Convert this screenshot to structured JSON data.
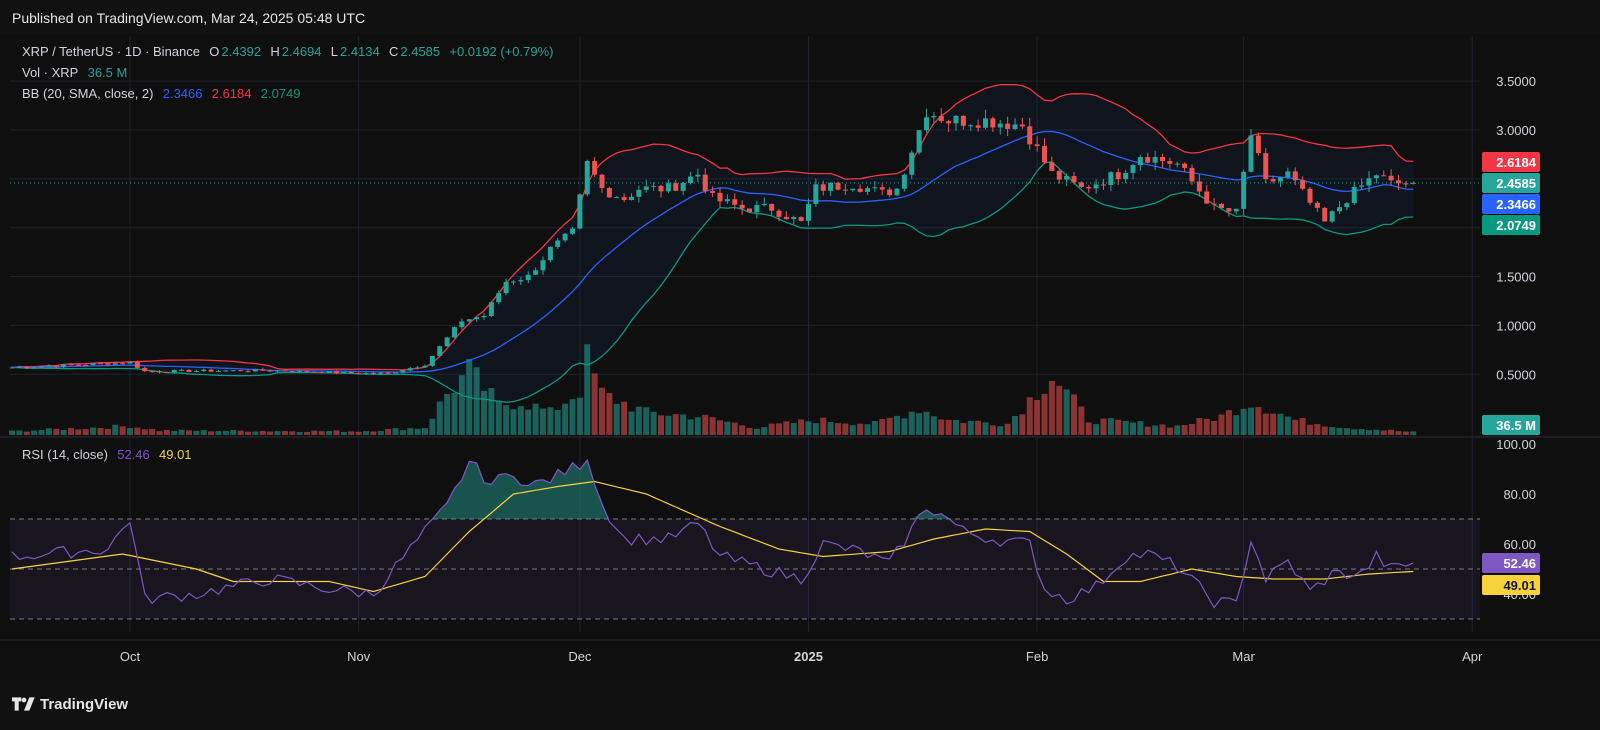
{
  "header": {
    "published": "Published on TradingView.com, Mar 24, 2025 05:48 UTC"
  },
  "legend": {
    "symbol": "XRP / TetherUS · 1D · Binance",
    "o_label": "O",
    "o": "2.4392",
    "h_label": "H",
    "h": "2.4694",
    "l_label": "L",
    "l": "2.4134",
    "c_label": "C",
    "c": "2.4585",
    "change": "+0.0192 (+0.79%)",
    "vol_label": "Vol · XRP",
    "vol": "36.5 M",
    "bb_label": "BB (20, SMA, close, 2)",
    "bb_basis": "2.3466",
    "bb_upper": "2.6184",
    "bb_lower": "2.0749",
    "rsi_label": "RSI (14, close)",
    "rsi": "52.46",
    "rsi_ma": "49.01"
  },
  "colors": {
    "up": "#26a69a",
    "down": "#ef5350",
    "bb_basis": "#2962ff",
    "bb_upper": "#f23645",
    "bb_lower": "#089981",
    "rsi": "#7e57c2",
    "rsi_ma": "#f7d23b",
    "background": "#0f0f0f"
  },
  "badges": {
    "upper": "2.6184",
    "price": "2.4585",
    "basis": "2.3466",
    "lower": "2.0749",
    "volume": "36.5 M",
    "rsi": "52.46",
    "rsi_ma": "49.01"
  },
  "footer": {
    "brand": "TradingView"
  },
  "chart_data": [
    {
      "type": "candlestick",
      "title": "XRP / TetherUS · 1D · Binance",
      "price_axis": {
        "ticks": [
          "3.5000",
          "3.0000",
          "2.5000",
          "2.0000",
          "1.5000",
          "1.0000",
          "0.5000"
        ],
        "ylim": [
          0.2,
          3.8
        ]
      },
      "time_axis": {
        "ticks": [
          "Oct",
          "Nov",
          "Dec",
          "2025",
          "Feb",
          "Mar",
          "Apr"
        ]
      },
      "grid": true,
      "close_waypoints": [
        [
          "Sep 15",
          0.57
        ],
        [
          "Oct 1",
          0.62
        ],
        [
          "Oct 3",
          0.53
        ],
        [
          "Oct 20",
          0.54
        ],
        [
          "Nov 1",
          0.51
        ],
        [
          "Nov 5",
          0.51
        ],
        [
          "Nov 10",
          0.6
        ],
        [
          "Nov 15",
          1.05
        ],
        [
          "Nov 18",
          1.1
        ],
        [
          "Nov 21",
          1.45
        ],
        [
          "Nov 24",
          1.5
        ],
        [
          "Nov 27",
          1.78
        ],
        [
          "Nov 30",
          1.95
        ],
        [
          "Dec 2",
          2.65
        ],
        [
          "Dec 4",
          2.4
        ],
        [
          "Dec 7",
          2.3
        ],
        [
          "Dec 9",
          2.4
        ],
        [
          "Dec 13",
          2.4
        ],
        [
          "Dec 17",
          2.55
        ],
        [
          "Dec 19",
          2.3
        ],
        [
          "Dec 23",
          2.2
        ],
        [
          "Dec 27",
          2.2
        ],
        [
          "Dec 31",
          2.05
        ],
        [
          "Jan 2",
          2.4
        ],
        [
          "Jan 7",
          2.45
        ],
        [
          "Jan 11",
          2.35
        ],
        [
          "Jan 13",
          2.4
        ],
        [
          "Jan 15",
          2.8
        ],
        [
          "Jan 17",
          3.2
        ],
        [
          "Jan 20",
          3.1
        ],
        [
          "Jan 25",
          3.1
        ],
        [
          "Jan 30",
          3.05
        ],
        [
          "Feb 3",
          2.55
        ],
        [
          "Feb 7",
          2.4
        ],
        [
          "Feb 12",
          2.55
        ],
        [
          "Feb 15",
          2.75
        ],
        [
          "Feb 20",
          2.65
        ],
        [
          "Feb 25",
          2.2
        ],
        [
          "Feb 28",
          2.15
        ],
        [
          "Mar 2",
          2.95
        ],
        [
          "Mar 4",
          2.45
        ],
        [
          "Mar 7",
          2.55
        ],
        [
          "Mar 10",
          2.25
        ],
        [
          "Mar 12",
          2.05
        ],
        [
          "Mar 15",
          2.3
        ],
        [
          "Mar 19",
          2.55
        ],
        [
          "Mar 21",
          2.45
        ],
        [
          "Mar 24",
          2.4585
        ]
      ],
      "bollinger_bands_last": {
        "basis": 2.3466,
        "upper": 2.6184,
        "lower": 2.0749
      }
    },
    {
      "type": "bar",
      "title": "Vol · XRP",
      "last_value": "36.5 M",
      "relative_volume_waypoints": [
        [
          "Sep 15",
          0.05
        ],
        [
          "Oct 1",
          0.12
        ],
        [
          "Oct 5",
          0.06
        ],
        [
          "Nov 1",
          0.05
        ],
        [
          "Nov 10",
          0.1
        ],
        [
          "Nov 13",
          0.55
        ],
        [
          "Nov 16",
          0.85
        ],
        [
          "Nov 20",
          0.4
        ],
        [
          "Nov 23",
          0.45
        ],
        [
          "Nov 27",
          0.3
        ],
        [
          "Dec 1",
          0.6
        ],
        [
          "Dec 2",
          1.0
        ],
        [
          "Dec 4",
          0.55
        ],
        [
          "Dec 10",
          0.3
        ],
        [
          "Dec 17",
          0.25
        ],
        [
          "Dec 25",
          0.1
        ],
        [
          "Jan 2",
          0.2
        ],
        [
          "Jan 10",
          0.15
        ],
        [
          "Jan 16",
          0.35
        ],
        [
          "Jan 20",
          0.2
        ],
        [
          "Jan 28",
          0.15
        ],
        [
          "Feb 3",
          0.8
        ],
        [
          "Feb 8",
          0.2
        ],
        [
          "Feb 20",
          0.12
        ],
        [
          "Feb 26",
          0.25
        ],
        [
          "Mar 2",
          0.45
        ],
        [
          "Mar 8",
          0.2
        ],
        [
          "Mar 15",
          0.1
        ],
        [
          "Mar 24",
          0.04
        ]
      ]
    },
    {
      "type": "line",
      "title": "RSI (14, close)",
      "axis": {
        "ticks": [
          "100.00",
          "80.00",
          "60.00",
          "40.00"
        ],
        "ylim": [
          30,
          100
        ]
      },
      "bands": [
        70,
        50,
        30
      ],
      "series": [
        {
          "name": "RSI",
          "waypoints": [
            [
              "Sep 15",
              55
            ],
            [
              "Sep 28",
              58
            ],
            [
              "Oct 1",
              70
            ],
            [
              "Oct 3",
              38
            ],
            [
              "Oct 10",
              40
            ],
            [
              "Oct 20",
              46
            ],
            [
              "Oct 28",
              42
            ],
            [
              "Nov 3",
              40
            ],
            [
              "Nov 8",
              58
            ],
            [
              "Nov 13",
              75
            ],
            [
              "Nov 16",
              93
            ],
            [
              "Nov 19",
              84
            ],
            [
              "Nov 22",
              89
            ],
            [
              "Nov 24",
              83
            ],
            [
              "Nov 27",
              86
            ],
            [
              "Dec 1",
              92
            ],
            [
              "Dec 2",
              95
            ],
            [
              "Dec 4",
              76
            ],
            [
              "Dec 7",
              62
            ],
            [
              "Dec 13",
              62
            ],
            [
              "Dec 17",
              68
            ],
            [
              "Dec 20",
              55
            ],
            [
              "Dec 26",
              50
            ],
            [
              "Dec 31",
              46
            ],
            [
              "Jan 3",
              60
            ],
            [
              "Jan 8",
              57
            ],
            [
              "Jan 12",
              52
            ],
            [
              "Jan 15",
              66
            ],
            [
              "Jan 17",
              75
            ],
            [
              "Jan 20",
              70
            ],
            [
              "Jan 22",
              65
            ],
            [
              "Jan 26",
              62
            ],
            [
              "Jan 31",
              60
            ],
            [
              "Feb 2",
              42
            ],
            [
              "Feb 5",
              38
            ],
            [
              "Feb 9",
              43
            ],
            [
              "Feb 13",
              55
            ],
            [
              "Feb 16",
              56
            ],
            [
              "Feb 20",
              51
            ],
            [
              "Feb 25",
              37
            ],
            [
              "Feb 28",
              36
            ],
            [
              "Mar 2",
              62
            ],
            [
              "Mar 4",
              46
            ],
            [
              "Mar 7",
              53
            ],
            [
              "Mar 10",
              41
            ],
            [
              "Mar 13",
              48
            ],
            [
              "Mar 17",
              48
            ],
            [
              "Mar 19",
              55
            ],
            [
              "Mar 21",
              50
            ],
            [
              "Mar 24",
              52.46
            ]
          ]
        },
        {
          "name": "RSI-based MA",
          "waypoints": [
            [
              "Sep 15",
              50
            ],
            [
              "Sep 30",
              56
            ],
            [
              "Oct 10",
              50
            ],
            [
              "Oct 15",
              45
            ],
            [
              "Oct 28",
              45
            ],
            [
              "Nov 3",
              41
            ],
            [
              "Nov 10",
              47
            ],
            [
              "Nov 16",
              65
            ],
            [
              "Nov 22",
              80
            ],
            [
              "Nov 28",
              83
            ],
            [
              "Dec 3",
              85
            ],
            [
              "Dec 10",
              80
            ],
            [
              "Dec 20",
              67
            ],
            [
              "Dec 28",
              58
            ],
            [
              "Jan 3",
              55
            ],
            [
              "Jan 12",
              57
            ],
            [
              "Jan 18",
              62
            ],
            [
              "Jan 25",
              66
            ],
            [
              "Jan 31",
              65
            ],
            [
              "Feb 5",
              56
            ],
            [
              "Feb 10",
              45
            ],
            [
              "Feb 15",
              45
            ],
            [
              "Feb 22",
              50
            ],
            [
              "Feb 28",
              47
            ],
            [
              "Mar 5",
              46
            ],
            [
              "Mar 12",
              46
            ],
            [
              "Mar 18",
              48
            ],
            [
              "Mar 24",
              49.01
            ]
          ]
        }
      ]
    }
  ]
}
